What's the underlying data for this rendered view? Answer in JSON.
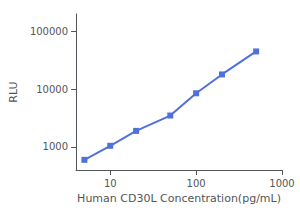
{
  "chart_data": {
    "type": "line",
    "x": [
      5,
      10,
      20,
      50,
      100,
      200,
      500
    ],
    "values": [
      600,
      1050,
      1900,
      3500,
      8500,
      18000,
      45000
    ],
    "xlabel": "Human CD30L Concentration(pg/mL)",
    "ylabel": "RLU",
    "xlim": [
      4,
      1000
    ],
    "ylim": [
      400,
      200000
    ],
    "xticks": [
      10,
      100,
      1000
    ],
    "yticks": [
      1000,
      10000,
      100000
    ],
    "log": true,
    "grid": false,
    "marker": "square"
  }
}
